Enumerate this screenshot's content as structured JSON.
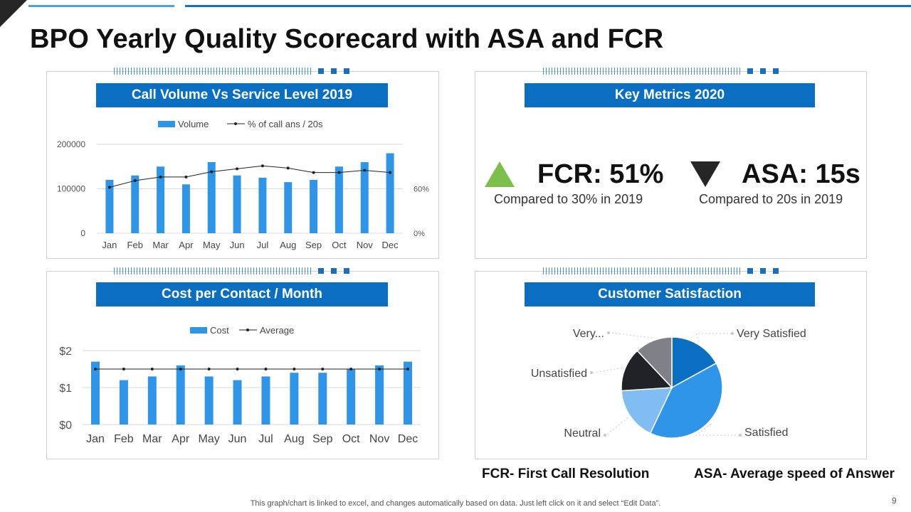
{
  "title": "BPO Yearly Quality Scorecard with ASA and FCR",
  "panels": {
    "volume": "Call Volume Vs Service Level 2019",
    "key": "Key Metrics 2020",
    "cost": "Cost per Contact / Month",
    "csat": "Customer Satisfaction"
  },
  "key_metrics": {
    "fcr": {
      "label": "FCR: 51%",
      "sub": "Compared to 30% in 2019",
      "trend": "up",
      "color": "#7cc04b"
    },
    "asa": {
      "label": "ASA: 15s",
      "sub": "Compared to 20s in 2019",
      "trend": "down",
      "color": "#262626"
    }
  },
  "legend_notes": {
    "fcr": "FCR- First Call Resolution",
    "asa": "ASA- Average speed of Answer"
  },
  "footnote": "This graph/chart is linked to excel,  and changes automatically based on data. Just left click on it and select “Edit Data”.",
  "page_number": "9",
  "colors": {
    "accent": "#0a6fc2",
    "bar": "#2f95e8",
    "line": "#222222"
  },
  "chart_data": [
    {
      "id": "volume",
      "type": "bar",
      "categories": [
        "Jan",
        "Feb",
        "Mar",
        "Apr",
        "May",
        "Jun",
        "Jul",
        "Aug",
        "Sep",
        "Oct",
        "Nov",
        "Dec"
      ],
      "series": [
        {
          "name": "Volume",
          "type": "bar",
          "axis": "left",
          "values": [
            120000,
            130000,
            150000,
            110000,
            160000,
            130000,
            125000,
            115000,
            120000,
            150000,
            160000,
            180000
          ]
        },
        {
          "name": "% of call ans / 20s",
          "type": "line",
          "axis": "right",
          "values": [
            0.62,
            0.71,
            0.76,
            0.76,
            0.83,
            0.87,
            0.91,
            0.88,
            0.82,
            0.82,
            0.85,
            0.82
          ]
        }
      ],
      "left_ticks": [
        "0",
        "100000",
        "200000"
      ],
      "left_ylim": [
        0,
        200000
      ],
      "right_ticks": [
        "0%",
        "60%"
      ],
      "right_ylim": [
        0,
        1.2
      ],
      "legend_position": "top"
    },
    {
      "id": "cost",
      "type": "bar",
      "categories": [
        "Jan",
        "Feb",
        "Mar",
        "Apr",
        "May",
        "Jun",
        "Jul",
        "Aug",
        "Sep",
        "Oct",
        "Nov",
        "Dec"
      ],
      "series": [
        {
          "name": "Cost",
          "type": "bar",
          "values": [
            1.7,
            1.2,
            1.3,
            1.6,
            1.3,
            1.2,
            1.3,
            1.4,
            1.4,
            1.5,
            1.6,
            1.7
          ]
        },
        {
          "name": "Average",
          "type": "line",
          "values": [
            1.5,
            1.5,
            1.5,
            1.5,
            1.5,
            1.5,
            1.5,
            1.5,
            1.5,
            1.5,
            1.5,
            1.5
          ]
        }
      ],
      "y_ticks": [
        "$0",
        "$1",
        "$2"
      ],
      "ylim": [
        0,
        2
      ],
      "legend_position": "top"
    },
    {
      "id": "csat",
      "type": "pie",
      "slices": [
        {
          "label": "Very Satisfied",
          "value": 17,
          "color": "#0a6fc2"
        },
        {
          "label": "Satisfied",
          "value": 40,
          "color": "#2f95e8"
        },
        {
          "label": "Neutral",
          "value": 17,
          "color": "#7fbdf2"
        },
        {
          "label": "Unsatisfied",
          "value": 14,
          "color": "#1f2227"
        },
        {
          "label": "Very...",
          "value": 12,
          "color": "#7f8088"
        }
      ]
    }
  ]
}
